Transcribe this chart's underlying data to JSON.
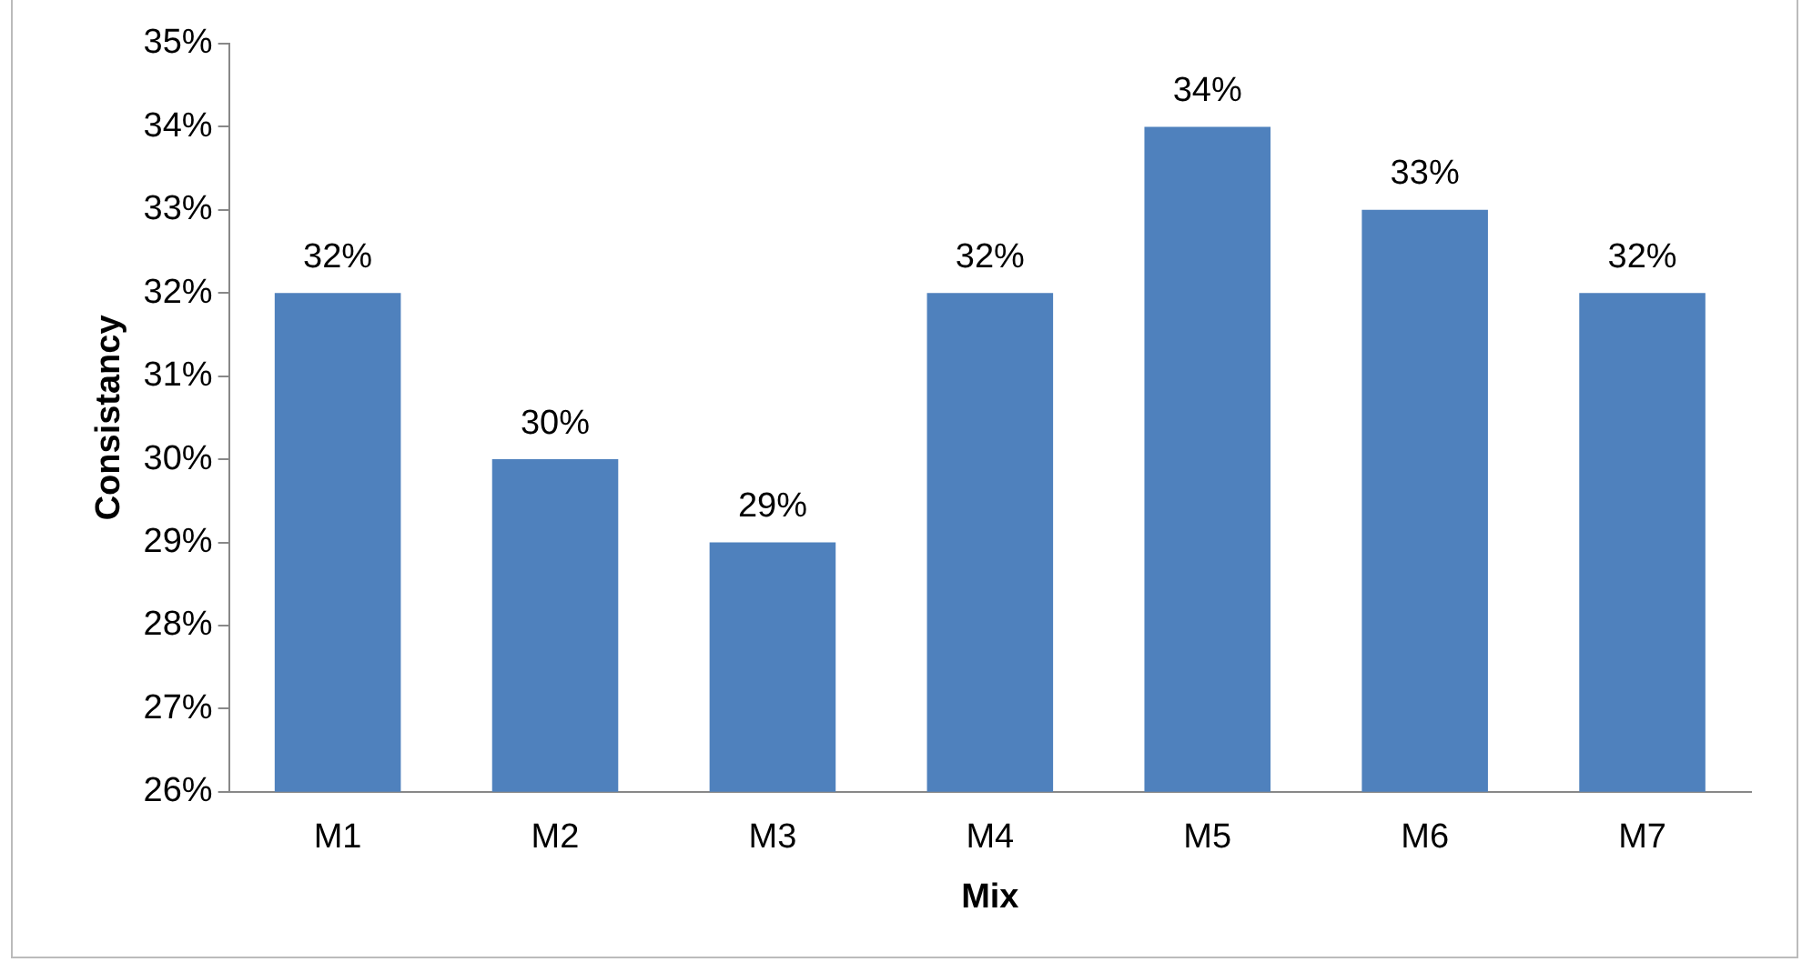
{
  "chart_data": {
    "type": "bar",
    "xlabel": "Mix",
    "ylabel": "Consistancy",
    "categories": [
      "M1",
      "M2",
      "M3",
      "M4",
      "M5",
      "M6",
      "M7"
    ],
    "values": [
      32,
      30,
      29,
      32,
      34,
      33,
      32
    ],
    "value_labels": [
      "32%",
      "30%",
      "29%",
      "32%",
      "34%",
      "33%",
      "32%"
    ],
    "color": "#4f81bd",
    "ylim": [
      26,
      35
    ],
    "yticks": [
      {
        "value": 26,
        "label": "26%"
      },
      {
        "value": 27,
        "label": "27%"
      },
      {
        "value": 28,
        "label": "28%"
      },
      {
        "value": 29,
        "label": "29%"
      },
      {
        "value": 30,
        "label": "30%"
      },
      {
        "value": 31,
        "label": "31%"
      },
      {
        "value": 32,
        "label": "32%"
      },
      {
        "value": 33,
        "label": "33%"
      },
      {
        "value": 34,
        "label": "34%"
      },
      {
        "value": 35,
        "label": "35%"
      }
    ],
    "grid": false,
    "legend": false
  }
}
